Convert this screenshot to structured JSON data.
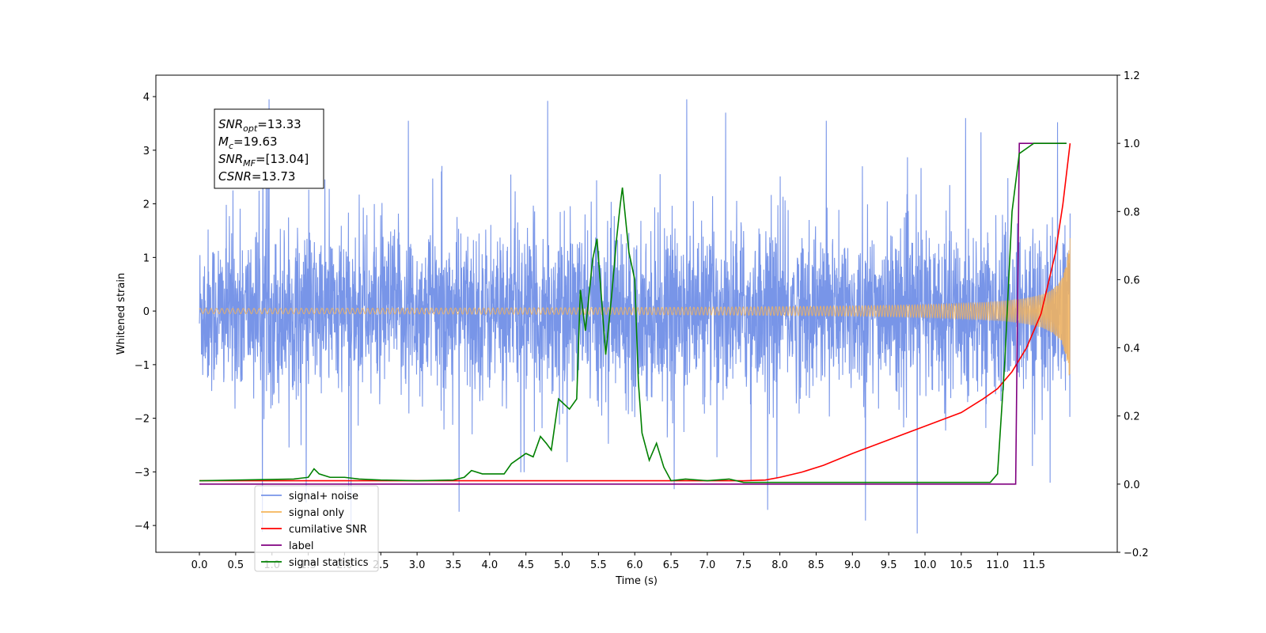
{
  "chart_data": {
    "type": "line",
    "title": "",
    "xlabel": "Time (s)",
    "ylabel_left": "Whitened strain",
    "ylabel_right": "",
    "xlim": [
      -0.6,
      12.65
    ],
    "ylim_left": [
      -4.5,
      4.4
    ],
    "ylim_right": [
      -0.2,
      1.2
    ],
    "x_ticks": [
      "0.0",
      "0.5",
      "1.0",
      "1.5",
      "2.0",
      "2.5",
      "3.0",
      "3.5",
      "4.0",
      "4.5",
      "5.0",
      "5.5",
      "6.0",
      "6.5",
      "7.0",
      "7.5",
      "8.0",
      "8.5",
      "9.0",
      "9.5",
      "10.0",
      "10.5",
      "11.0",
      "11.5"
    ],
    "y_ticks_left": [
      "−4",
      "−3",
      "−2",
      "−1",
      "0",
      "1",
      "2",
      "3",
      "4"
    ],
    "y_ticks_right": [
      "−0.2",
      "0.0",
      "0.2",
      "0.4",
      "0.6",
      "0.8",
      "1.0",
      "1.2"
    ],
    "grid": false,
    "legend_position": "lower-left",
    "annotation": {
      "lines": [
        {
          "sym": "SNR",
          "sub": "opt",
          "value": "=13.33"
        },
        {
          "sym": "M",
          "sub": "c",
          "value": "=19.63"
        },
        {
          "sym": "SNR",
          "sub": "MF",
          "value": "=[13.04]"
        },
        {
          "sym": "CSNR",
          "sub": "",
          "value": "=13.73"
        }
      ]
    },
    "series": [
      {
        "name": "signal+ noise",
        "color": "#7895e8",
        "axis": "left",
        "description": "noise",
        "x_range": [
          0.0,
          12.0
        ],
        "typical_amplitude": 1.6,
        "max_peaks": [
          3.95,
          3.55,
          3.92,
          3.95,
          3.55,
          3.6
        ]
      },
      {
        "name": "signal only",
        "color": "#f5b45a",
        "axis": "left",
        "description": "chirp",
        "x_range": [
          0.0,
          12.0
        ],
        "amplitude_start": 0.02,
        "amplitude_end": 1.45
      },
      {
        "name": "cumilative SNR",
        "color": "#ff0000",
        "axis": "right",
        "x": [
          0.0,
          7.5,
          7.8,
          8.0,
          8.3,
          8.6,
          9.0,
          9.5,
          10.0,
          10.5,
          10.8,
          11.0,
          11.2,
          11.4,
          11.6,
          11.8,
          11.9,
          12.0
        ],
        "y": [
          0.01,
          0.01,
          0.012,
          0.02,
          0.035,
          0.055,
          0.09,
          0.13,
          0.17,
          0.21,
          0.25,
          0.28,
          0.33,
          0.4,
          0.5,
          0.68,
          0.82,
          1.0
        ]
      },
      {
        "name": "label",
        "color": "#800080",
        "axis": "right",
        "x": [
          0.0,
          11.25,
          11.3,
          11.95
        ],
        "y": [
          0.0,
          0.0,
          1.0,
          1.0
        ]
      },
      {
        "name": "signal statistics",
        "color": "#008000",
        "axis": "right",
        "x": [
          0.0,
          1.3,
          1.5,
          1.58,
          1.65,
          1.8,
          2.0,
          2.2,
          2.5,
          3.0,
          3.5,
          3.65,
          3.75,
          3.9,
          4.2,
          4.3,
          4.5,
          4.6,
          4.7,
          4.78,
          4.85,
          4.95,
          5.0,
          5.1,
          5.2,
          5.25,
          5.32,
          5.42,
          5.48,
          5.6,
          5.68,
          5.75,
          5.8,
          5.83,
          5.92,
          6.0,
          6.05,
          6.1,
          6.2,
          6.3,
          6.4,
          6.5,
          6.7,
          7.0,
          7.3,
          7.5,
          10.9,
          11.0,
          11.1,
          11.2,
          11.3,
          11.5,
          11.95
        ],
        "y": [
          0.01,
          0.015,
          0.02,
          0.045,
          0.03,
          0.02,
          0.02,
          0.015,
          0.012,
          0.01,
          0.012,
          0.02,
          0.04,
          0.03,
          0.03,
          0.06,
          0.09,
          0.08,
          0.14,
          0.12,
          0.1,
          0.25,
          0.24,
          0.22,
          0.25,
          0.57,
          0.45,
          0.66,
          0.72,
          0.38,
          0.55,
          0.72,
          0.82,
          0.87,
          0.68,
          0.6,
          0.3,
          0.15,
          0.07,
          0.12,
          0.05,
          0.01,
          0.015,
          0.01,
          0.015,
          0.005,
          0.005,
          0.03,
          0.36,
          0.8,
          0.97,
          1.0,
          1.0
        ]
      }
    ],
    "legend_entries": [
      {
        "label": "signal+ noise",
        "color": "#7895e8"
      },
      {
        "label": "signal only",
        "color": "#f5b45a"
      },
      {
        "label": "cumilative SNR",
        "color": "#ff0000"
      },
      {
        "label": "label",
        "color": "#800080"
      },
      {
        "label": "signal statistics",
        "color": "#008000"
      }
    ]
  }
}
